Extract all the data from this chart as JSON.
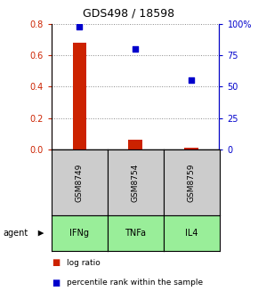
{
  "title": "GDS498 / 18598",
  "samples": [
    "GSM8749",
    "GSM8754",
    "GSM8759"
  ],
  "agents": [
    "IFNg",
    "TNFa",
    "IL4"
  ],
  "log_ratios": [
    0.68,
    0.06,
    0.01
  ],
  "percentile_ranks": [
    98,
    80,
    55
  ],
  "bar_color": "#cc2200",
  "dot_color": "#0000cc",
  "left_ylim": [
    0,
    0.8
  ],
  "right_ylim": [
    0,
    100
  ],
  "left_yticks": [
    0,
    0.2,
    0.4,
    0.6,
    0.8
  ],
  "right_yticks": [
    0,
    25,
    50,
    75,
    100
  ],
  "right_yticklabels": [
    "0",
    "25",
    "50",
    "75",
    "100%"
  ],
  "sample_box_color": "#cccccc",
  "agent_box_color": "#99ee99",
  "agent_label": "agent",
  "legend_bar_label": "log ratio",
  "legend_dot_label": "percentile rank within the sample",
  "grid_color": "#888888",
  "x_positions": [
    0,
    1,
    2
  ],
  "bar_width": 0.25
}
